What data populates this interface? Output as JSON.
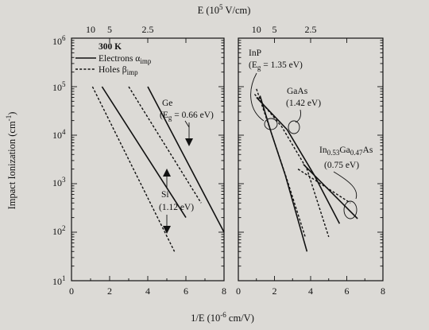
{
  "colors": {
    "background": "#dcdad6",
    "ink": "#111111"
  },
  "chart_data": {
    "type": "line",
    "shared": {
      "ylabel": "Impact Ionization (cm",
      "ylabel_sup": "-1",
      "ylabel_end": ")",
      "xlabel": "1/E (10",
      "xlabel_sup": "-6",
      "xlabel_end": " cm/V)",
      "top_axis_label": "E (10",
      "top_axis_label_sup": "5",
      "top_axis_label_end": " V/cm)",
      "yscale": "log",
      "ylim": [
        10,
        1000000
      ],
      "xlim": [
        0,
        8
      ],
      "x_ticks": [
        "0",
        "2",
        "4",
        "6",
        "8"
      ],
      "y_ticks": [
        {
          "base": "10",
          "exp": "1"
        },
        {
          "base": "10",
          "exp": "2"
        },
        {
          "base": "10",
          "exp": "3"
        },
        {
          "base": "10",
          "exp": "4"
        },
        {
          "base": "10",
          "exp": "5"
        },
        {
          "base": "10",
          "exp": "6"
        }
      ],
      "top_ticks": [
        {
          "label": "10",
          "x": 1.0
        },
        {
          "label": "5",
          "x": 2.0
        },
        {
          "label": "2.5",
          "x": 4.0
        }
      ]
    },
    "panels": [
      {
        "name": "left",
        "legend": {
          "title": "300 K",
          "entries": [
            {
              "text": "Electrons α",
              "sub": "imp",
              "style": "solid"
            },
            {
              "text": "Holes β",
              "sub": "imp",
              "style": "dashed"
            }
          ]
        },
        "series": [
          {
            "material": "Ge",
            "carrier": "electrons",
            "style": "solid",
            "x": [
              4.0,
              8.0
            ],
            "y": [
              100000,
              100
            ]
          },
          {
            "material": "Ge",
            "carrier": "holes",
            "style": "dashed",
            "x": [
              3.0,
              6.8
            ],
            "y": [
              100000,
              400
            ]
          },
          {
            "material": "Si",
            "carrier": "electrons",
            "style": "solid",
            "x": [
              1.6,
              6.0
            ],
            "y": [
              100000,
              200
            ]
          },
          {
            "material": "Si",
            "carrier": "holes",
            "style": "dashed",
            "x": [
              1.1,
              5.4
            ],
            "y": [
              100000,
              40
            ]
          }
        ],
        "annotations": [
          {
            "text": "Ge",
            "line2_pre": "(E",
            "line2_sub": "g",
            "line2_post": " = 0.66 eV)"
          },
          {
            "text": "Si",
            "line2_pre": "(1.12 eV)",
            "line2_sub": "",
            "line2_post": ""
          }
        ]
      },
      {
        "name": "right",
        "series": [
          {
            "material": "InP",
            "carrier": "electrons",
            "style": "solid",
            "x": [
              1.2,
              1.8,
              2.6,
              3.8
            ],
            "y": [
              65000,
              12000,
              1500,
              40
            ]
          },
          {
            "material": "InP",
            "carrier": "holes",
            "style": "dashed",
            "x": [
              1.0,
              1.8,
              2.7,
              3.7
            ],
            "y": [
              90000,
              12000,
              1200,
              80
            ]
          },
          {
            "material": "GaAs",
            "carrier": "electrons",
            "style": "solid",
            "x": [
              1.0,
              2.7,
              4.2,
              5.6
            ],
            "y": [
              60000,
              13000,
              1500,
              150
            ]
          },
          {
            "material": "GaAs",
            "carrier": "holes",
            "style": "dashed",
            "x": [
              0.9,
              2.4,
              3.8,
              5.0
            ],
            "y": [
              70000,
              15000,
              2000,
              80
            ]
          },
          {
            "material": "In0.53Ga0.47As",
            "carrier": "electrons",
            "style": "solid",
            "x": [
              3.6,
              6.6
            ],
            "y": [
              2500,
              190
            ]
          },
          {
            "material": "In0.53Ga0.47As",
            "carrier": "holes",
            "style": "dashed",
            "x": [
              3.3,
              6.2
            ],
            "y": [
              2000,
              400
            ]
          }
        ],
        "annotations": [
          {
            "text": "InP",
            "line2_pre": "(E",
            "line2_sub": "g",
            "line2_post": " = 1.35 eV)"
          },
          {
            "text": "GaAs",
            "line2_pre": "(1.42 eV)",
            "line2_sub": "",
            "line2_post": ""
          },
          {
            "text_pre": "In",
            "text_sub1": "0.53",
            "text_mid": "Ga",
            "text_sub2": "0.47",
            "text_post": "As",
            "line2_pre": "(0.75 eV)",
            "line2_sub": "",
            "line2_post": ""
          }
        ]
      }
    ]
  }
}
